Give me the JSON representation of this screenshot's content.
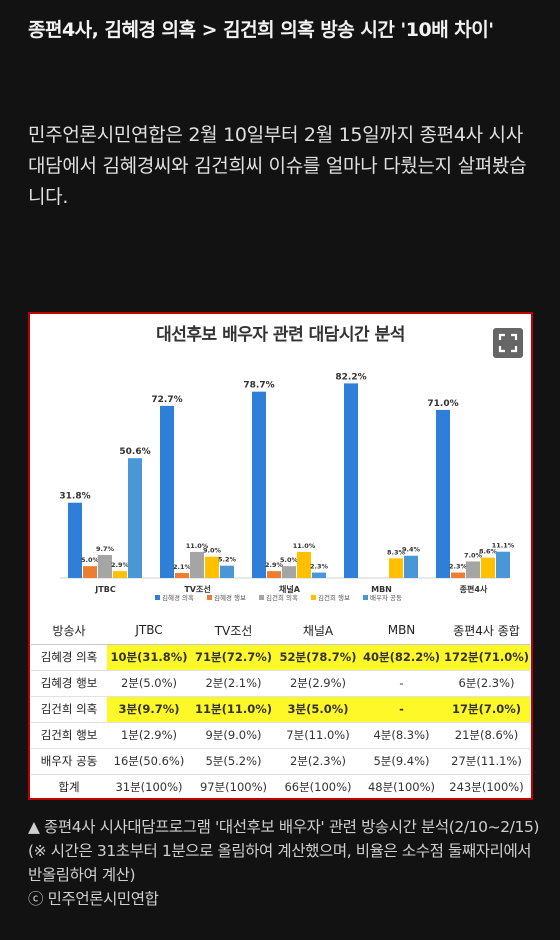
{
  "headline": "종편4사, 김혜경 의혹 > 김건희 의혹 방송 시간 '10배 차이'",
  "paragraph": "민주언론시민연합은 2월 10일부터 2월 15일까지 종편4사 시사대담에서 김혜경씨와 김건희씨 이슈를 얼마나 다뤘는지 살펴봤습니다.",
  "figure": {
    "title": "대선후보 배우자 관련 대담시간 분석",
    "expand_icon": "expand-icon"
  },
  "chart_data": {
    "type": "bar",
    "title": "대선후보 배우자 관련 대담시간 분석",
    "categories": [
      "JTBC",
      "TV조선",
      "채널A",
      "MBN",
      "종편4사"
    ],
    "series": [
      {
        "name": "김혜경 의혹",
        "color": "#2f7fd8",
        "values": [
          31.8,
          72.7,
          78.7,
          82.2,
          71.0
        ],
        "labels": [
          "31.8%",
          "72.7%",
          "78.7%",
          "82.2%",
          "71.0%"
        ]
      },
      {
        "name": "김혜경 행보",
        "color": "#ed7d31",
        "values": [
          5.0,
          2.1,
          2.9,
          0,
          2.3
        ],
        "labels": [
          "5.0%",
          "2.1%",
          "2.9%",
          "",
          "2.3%"
        ]
      },
      {
        "name": "김건희 의혹",
        "color": "#a5a5a5",
        "values": [
          9.7,
          11.0,
          5.0,
          0,
          7.0
        ],
        "labels": [
          "9.7%",
          "11.0%",
          "5.0%",
          "",
          "7.0%"
        ]
      },
      {
        "name": "김건희 행보",
        "color": "#ffc000",
        "values": [
          2.9,
          9.0,
          11.0,
          8.3,
          8.6
        ],
        "labels": [
          "2.9%",
          "9.0%",
          "11.0%",
          "8.3%",
          "8.6%"
        ]
      },
      {
        "name": "배우자 공동",
        "color": "#4a97d8",
        "values": [
          50.6,
          5.2,
          2.3,
          9.4,
          11.1
        ],
        "labels": [
          "50.6%",
          "5.2%",
          "2.3%",
          "9.4%",
          "11.1%"
        ]
      }
    ],
    "ylim": [
      0,
      90
    ],
    "legend_position": "bottom"
  },
  "table": {
    "headers": [
      "방송사",
      "JTBC",
      "TV조선",
      "채널A",
      "MBN",
      "종편4사 종합"
    ],
    "rows": [
      {
        "highlight": true,
        "cells": [
          "김혜경 의혹",
          "10분(31.8%)",
          "71분(72.7%)",
          "52분(78.7%)",
          "40분(82.2%)",
          "172분(71.0%)"
        ]
      },
      {
        "highlight": false,
        "cells": [
          "김혜경 행보",
          "2분(5.0%)",
          "2분(2.1%)",
          "2분(2.9%)",
          "-",
          "6분(2.3%)"
        ]
      },
      {
        "highlight": true,
        "cells": [
          "김건희 의혹",
          "3분(9.7%)",
          "11분(11.0%)",
          "3분(5.0%)",
          "-",
          "17분(7.0%)"
        ]
      },
      {
        "highlight": false,
        "cells": [
          "김건희 행보",
          "1분(2.9%)",
          "9분(9.0%)",
          "7분(11.0%)",
          "4분(8.3%)",
          "21분(8.6%)"
        ]
      },
      {
        "highlight": false,
        "cells": [
          "배우자 공동",
          "16분(50.6%)",
          "5분(5.2%)",
          "2분(2.3%)",
          "5분(9.4%)",
          "27분(11.1%)"
        ]
      },
      {
        "highlight": false,
        "cells": [
          "합계",
          "31분(100%)",
          "97분(100%)",
          "66분(100%)",
          "48분(100%)",
          "243분(100%)"
        ]
      }
    ]
  },
  "caption": {
    "text": "▲ 종편4사 시사대담프로그램 '대선후보 배우자' 관련 방송시간 분석(2/10~2/15)(※ 시간은 31초부터 1분으로 올림하여 계산했으며, 비율은 소수점 둘째자리에서 반올림하여 계산)",
    "credit": "ⓒ 민주언론시민연합"
  }
}
